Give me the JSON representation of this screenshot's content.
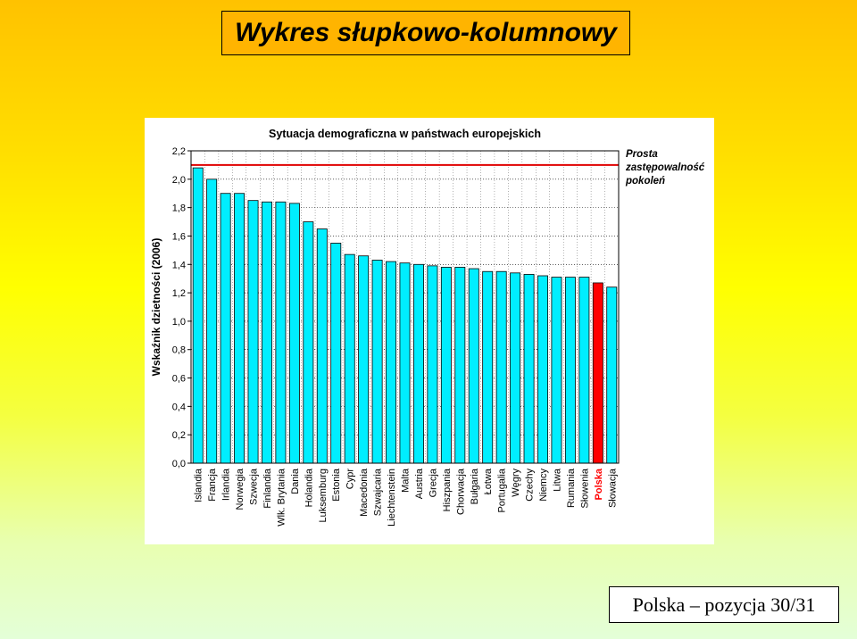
{
  "slide": {
    "title": "Wykres słupkowo-kolumnowy",
    "footer": "Polska – pozycja  30/31"
  },
  "chart_data": {
    "type": "bar",
    "title": "Sytuacja demograficzna w państwach europejskich",
    "ylabel": "Wskaźnik dzietności (2006)",
    "xlabel": "",
    "ylim": [
      0,
      2.2
    ],
    "yticks": [
      "0,0",
      "0,2",
      "0,4",
      "0,6",
      "0,8",
      "1,0",
      "1,2",
      "1,4",
      "1,6",
      "1,8",
      "2,0",
      "2,2"
    ],
    "grid": true,
    "categories": [
      "Islandia",
      "Francja",
      "Irlandia",
      "Norwegia",
      "Szwecja",
      "Finlandia",
      "Wlk. Brytania",
      "Dania",
      "Holandia",
      "Luksemburg",
      "Estonia",
      "Cypr",
      "Macedonia",
      "Szwajcaria",
      "Liechtenstein",
      "Malta",
      "Austria",
      "Grecja",
      "Hiszpania",
      "Chorwacja",
      "Bułgaria",
      "Łotwa",
      "Portugalia",
      "Węgry",
      "Czechy",
      "Niemcy",
      "Litwa",
      "Rumania",
      "Słowenia",
      "Polska",
      "Słowacja"
    ],
    "values": [
      2.08,
      2.0,
      1.9,
      1.9,
      1.85,
      1.84,
      1.84,
      1.83,
      1.7,
      1.65,
      1.55,
      1.47,
      1.46,
      1.43,
      1.42,
      1.41,
      1.4,
      1.39,
      1.38,
      1.38,
      1.37,
      1.35,
      1.35,
      1.34,
      1.33,
      1.32,
      1.31,
      1.31,
      1.31,
      1.27,
      1.24
    ],
    "highlight": "Polska",
    "colors": {
      "bar": "#00eeff",
      "highlight": "#ff0000",
      "reference": "#e00000"
    },
    "reference_line": {
      "value": 2.1,
      "label": [
        "Prosta",
        "zastępowalność",
        "pokoleń"
      ]
    }
  }
}
